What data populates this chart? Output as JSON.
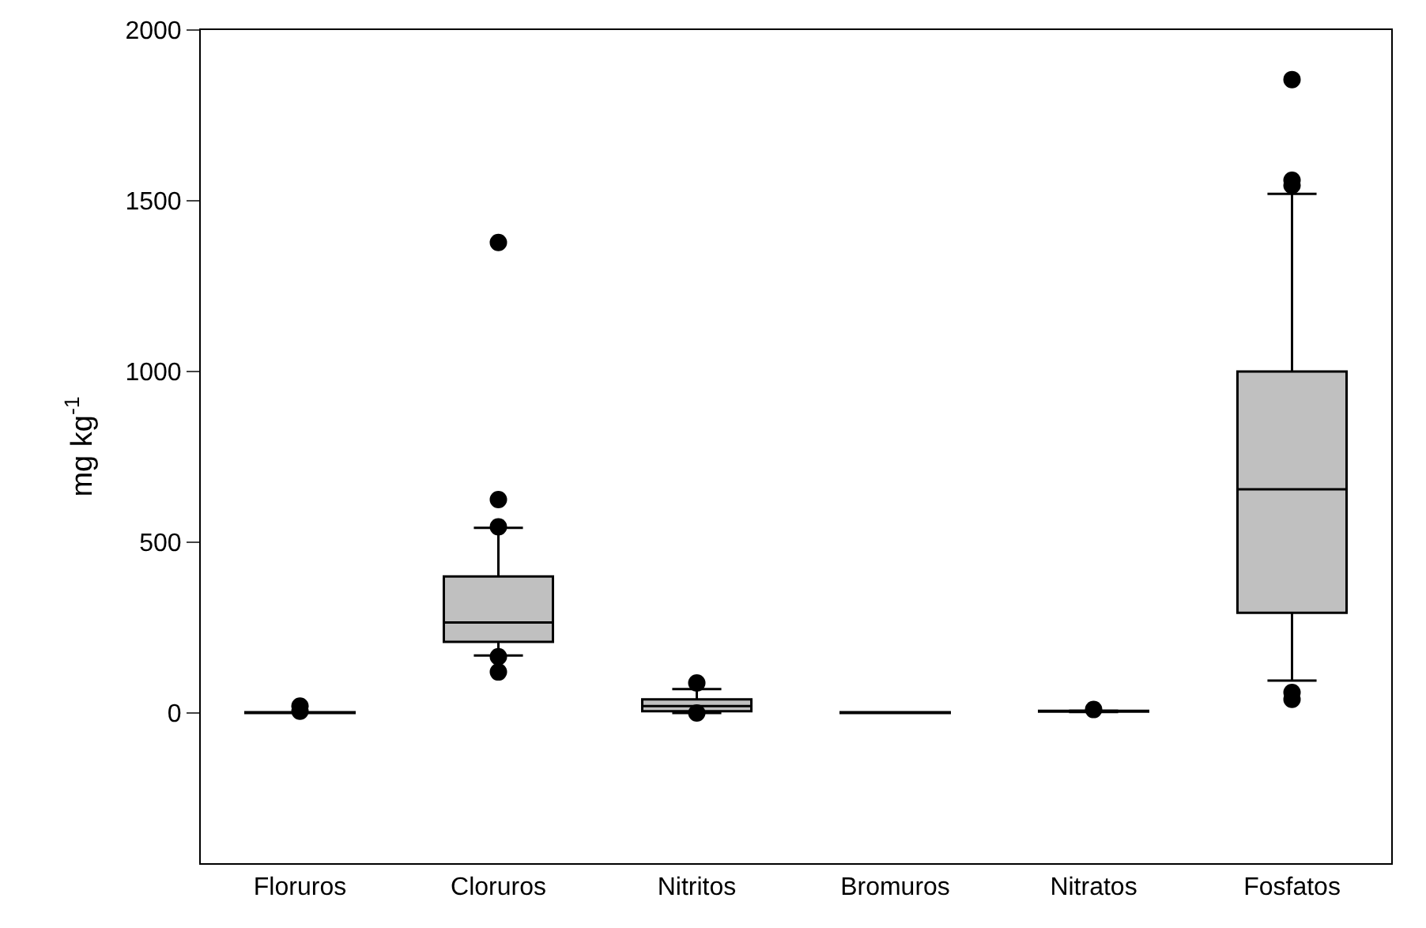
{
  "chart_data": {
    "type": "box",
    "ylabel": "mg kg$^{-1}$",
    "categories": [
      "Floruros",
      "Cloruros",
      "Nitritos",
      "Bromuros",
      "Nitratos",
      "Fosfatos"
    ],
    "color": "#c0c0c0",
    "boxes": [
      {
        "low": 0,
        "q1": 0,
        "median": 0,
        "q3": 2,
        "high": 2,
        "outliers": [
          20,
          5
        ]
      },
      {
        "low": 168,
        "q1": 208,
        "median": 265,
        "q3": 400,
        "high": 542,
        "outliers": [
          1378,
          625,
          545,
          165,
          120
        ]
      },
      {
        "low": 0,
        "q1": 5,
        "median": 20,
        "q3": 40,
        "high": 70,
        "outliers": [
          88,
          0
        ]
      },
      {
        "low": 0,
        "q1": 0,
        "median": 1,
        "q3": 2,
        "high": 2
      },
      {
        "low": 3,
        "q1": 4,
        "median": 5,
        "q3": 6,
        "high": 7,
        "outliers": [
          10
        ]
      },
      {
        "low": 95,
        "q1": 293,
        "median": 655,
        "q3": 1000,
        "high": 1520,
        "outliers": [
          1855,
          1560,
          1545,
          60,
          40
        ]
      }
    ],
    "ylim": [
      -440,
      2000
    ],
    "yticks": [
      0,
      500,
      1000,
      1500,
      2000
    ]
  }
}
